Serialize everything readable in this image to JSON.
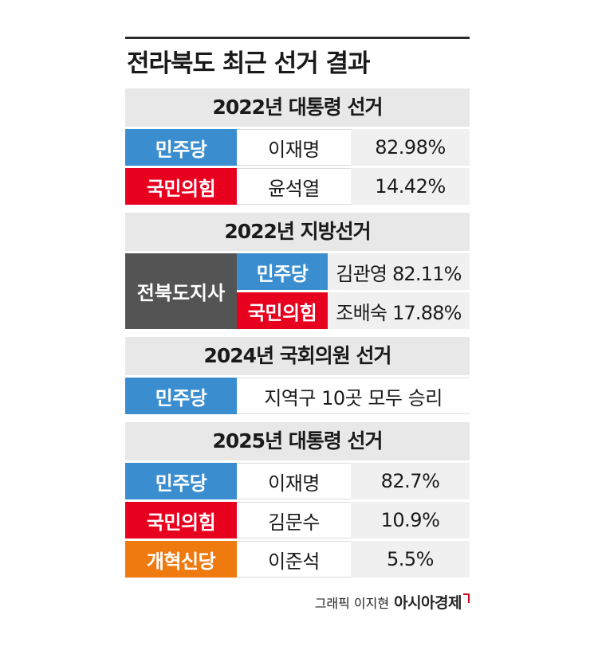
{
  "title": "전라북도 최근 선거 결과",
  "colors": {
    "democratic": "#3a8ed0",
    "ppp": "#e8001f",
    "reform": "#ef7a10",
    "governor": "#545454",
    "header_bg": "#e8e8e8"
  },
  "sections": [
    {
      "heading": "2022년 대통령 선거",
      "rows": [
        {
          "party": "민주당",
          "candidate": "이재명",
          "result": "82.98%"
        },
        {
          "party": "국민의힘",
          "candidate": "윤석열",
          "result": "14.42%"
        }
      ]
    },
    {
      "heading": "2022년 지방선거",
      "office": "전북도지사",
      "rows": [
        {
          "party": "민주당",
          "result": "김관영 82.11%"
        },
        {
          "party": "국민의힘",
          "result": "조배숙 17.88%"
        }
      ]
    },
    {
      "heading": "2024년 국회의원 선거",
      "rows": [
        {
          "party": "민주당",
          "result": "지역구 10곳 모두 승리"
        }
      ]
    },
    {
      "heading": "2025년 대통령 선거",
      "rows": [
        {
          "party": "민주당",
          "candidate": "이재명",
          "result": "82.7%"
        },
        {
          "party": "국민의힘",
          "candidate": "김문수",
          "result": "10.9%"
        },
        {
          "party": "개혁신당",
          "candidate": "이준석",
          "result": "5.5%"
        }
      ]
    }
  ],
  "footer": {
    "credit": "그래픽 이지현",
    "brand": "아시아경제"
  }
}
